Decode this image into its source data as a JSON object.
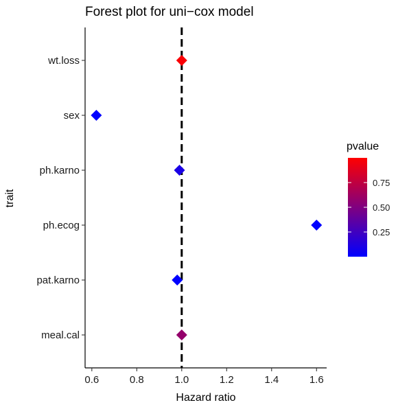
{
  "chart_data": {
    "type": "scatter",
    "title": "Forest plot for uni−cox model",
    "xlabel": "Hazard ratio",
    "ylabel": "trait",
    "xlim": [
      0.57,
      1.645
    ],
    "xticks": [
      0.6,
      0.8,
      1.0,
      1.2,
      1.4,
      1.6
    ],
    "xtick_labels": [
      "0.6",
      "0.8",
      "1.0",
      "1.2",
      "1.4",
      "1.6"
    ],
    "categories": [
      "wt.loss",
      "sex",
      "ph.karno",
      "ph.ecog",
      "pat.karno",
      "meal.cal"
    ],
    "reference_line": 1.0,
    "points": [
      {
        "trait": "wt.loss",
        "hr": 1.0,
        "pvalue": 0.98
      },
      {
        "trait": "sex",
        "hr": 0.62,
        "pvalue": 0.0015
      },
      {
        "trait": "ph.karno",
        "hr": 0.99,
        "pvalue": 0.1
      },
      {
        "trait": "ph.ecog",
        "hr": 1.6,
        "pvalue": 3e-05
      },
      {
        "trait": "pat.karno",
        "hr": 0.98,
        "pvalue": 0.003
      },
      {
        "trait": "meal.cal",
        "hr": 1.0,
        "pvalue": 0.58
      }
    ],
    "marker": "diamond",
    "grid": false,
    "legend": {
      "title": "pvalue",
      "position": "right",
      "range": [
        0.0,
        1.0
      ],
      "breaks": [
        0.75,
        0.5,
        0.25
      ],
      "break_labels": [
        "0.75",
        "0.50",
        "0.25"
      ],
      "color_low": "#0000FF",
      "color_high": "#FF0000"
    }
  }
}
